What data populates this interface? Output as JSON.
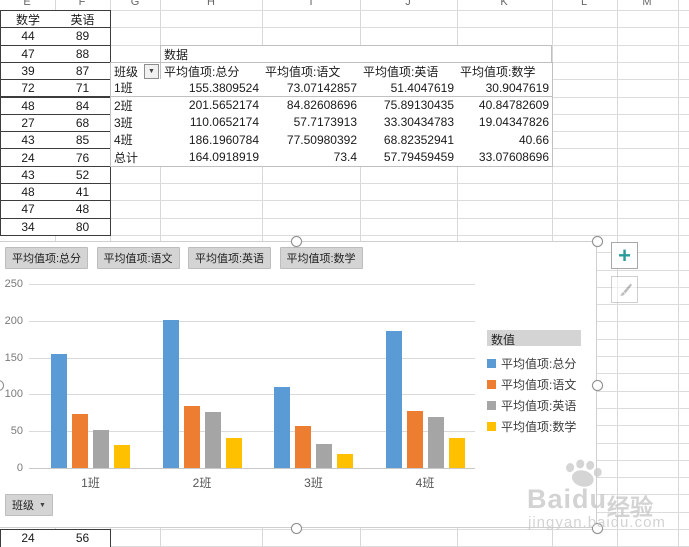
{
  "spreadsheet": {
    "column_headers": [
      "E",
      "F",
      "G",
      "H",
      "I",
      "J",
      "K",
      "L",
      "M"
    ],
    "left_table": {
      "headers": [
        "数学",
        "英语"
      ],
      "rows": [
        [
          "44",
          "89"
        ],
        [
          "47",
          "88"
        ],
        [
          "39",
          "87"
        ],
        [
          "72",
          "71"
        ],
        [
          "48",
          "84"
        ],
        [
          "27",
          "68"
        ],
        [
          "43",
          "85"
        ],
        [
          "24",
          "76"
        ],
        [
          "43",
          "52"
        ],
        [
          "48",
          "41"
        ],
        [
          "47",
          "48"
        ],
        [
          "34",
          "80"
        ]
      ],
      "bottom_row": [
        "24",
        "56"
      ]
    },
    "pivot_table": {
      "data_label": "数据",
      "row_field_label": "班级",
      "dropdown_icon": "▼",
      "column_headers": [
        "平均值项:总分",
        "平均值项:语文",
        "平均值项:英语",
        "平均值项:数学"
      ],
      "rows": [
        {
          "label": "1班",
          "values": [
            "155.3809524",
            "73.07142857",
            "51.4047619",
            "30.9047619"
          ]
        },
        {
          "label": "2班",
          "values": [
            "201.5652174",
            "84.82608696",
            "75.89130435",
            "40.84782609"
          ]
        },
        {
          "label": "3班",
          "values": [
            "110.0652174",
            "57.7173913",
            "33.30434783",
            "19.04347826"
          ]
        },
        {
          "label": "4班",
          "values": [
            "186.1960784",
            "77.50980392",
            "68.82352941",
            "40.66"
          ]
        },
        {
          "label": "总计",
          "values": [
            "164.0918919",
            "73.4",
            "57.79459459",
            "33.07608696"
          ]
        }
      ]
    }
  },
  "chart": {
    "field_buttons": [
      "平均值项:总分",
      "平均值项:语文",
      "平均值项:英语",
      "平均值项:数学"
    ],
    "axis_field_button": "班级",
    "axis_dropdown_icon": "▼",
    "legend_title": "数值",
    "plus_button": "+",
    "brush_button": "chart-styles-brush"
  },
  "chart_data": {
    "type": "bar",
    "categories": [
      "1班",
      "2班",
      "3班",
      "4班"
    ],
    "series": [
      {
        "name": "平均值项:总分",
        "color": "#5B9BD5",
        "values": [
          155.3809524,
          201.5652174,
          110.0652174,
          186.1960784
        ]
      },
      {
        "name": "平均值项:语文",
        "color": "#ED7D31",
        "values": [
          73.07142857,
          84.82608696,
          57.7173913,
          77.50980392
        ]
      },
      {
        "name": "平均值项:英语",
        "color": "#A5A5A5",
        "values": [
          51.4047619,
          75.89130435,
          33.30434783,
          68.82352941
        ]
      },
      {
        "name": "平均值项:数学",
        "color": "#FFC000",
        "values": [
          30.9047619,
          40.84782609,
          19.04347826,
          40.66
        ]
      }
    ],
    "ylim": [
      0,
      250
    ],
    "yticks": [
      0,
      50,
      100,
      150,
      200,
      250
    ],
    "grid": true,
    "legend_position": "right"
  },
  "watermark": {
    "brand": "Baidu",
    "suffix": "经验",
    "url": "jingyan.baidu.com"
  },
  "colors": {
    "gridline": "#d8d8d8",
    "pivot_border": "#c0c0c0",
    "table_border": "#3c3c3c",
    "field_button_bg": "#d4d4d4",
    "plus_icon": "#2b9a9a"
  }
}
